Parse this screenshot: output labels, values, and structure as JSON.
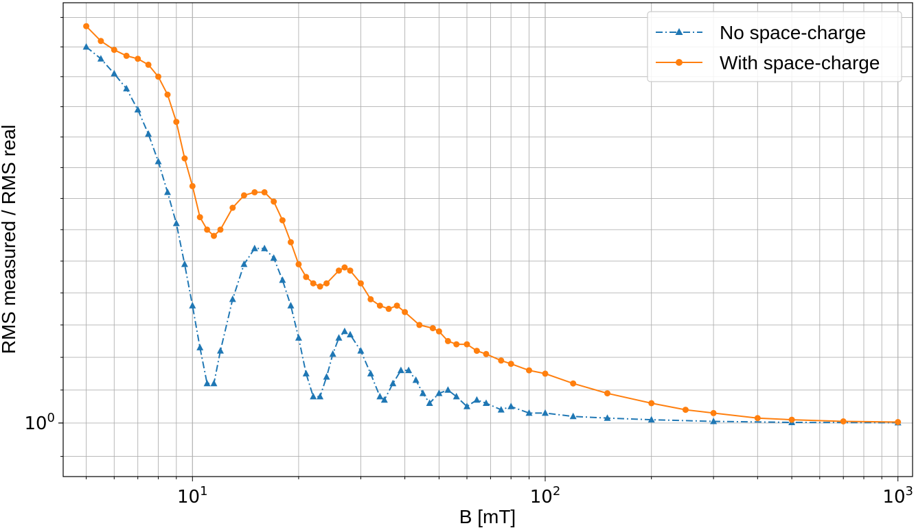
{
  "chart_data": {
    "type": "line",
    "xlabel": "B [mT]",
    "ylabel": "RMS measured / RMS real",
    "xscale": "log",
    "yscale": "log",
    "xlim": [
      4.3,
      1100
    ],
    "ylim": [
      0.984,
      1.135
    ],
    "grid": "major+minor",
    "legend_position": "top-right",
    "x_ticks": [
      {
        "value": 10,
        "label": "10¹",
        "base": "10",
        "exp": "1"
      },
      {
        "value": 100,
        "label": "10²",
        "base": "10",
        "exp": "2"
      },
      {
        "value": 1000,
        "label": "10³",
        "base": "10",
        "exp": "3"
      }
    ],
    "y_ticks": [
      {
        "value": 1,
        "label": "10⁰",
        "base": "10",
        "exp": "0"
      }
    ],
    "series": [
      {
        "name": "No space-charge",
        "color": "#1f77b4",
        "linestyle": "dashdot",
        "marker": "triangle",
        "anchors": [
          [
            5.0,
            1.12
          ],
          [
            5.5,
            1.116
          ],
          [
            6.0,
            1.111
          ],
          [
            6.5,
            1.106
          ],
          [
            7.0,
            1.099
          ],
          [
            7.5,
            1.091
          ],
          [
            8.0,
            1.082
          ],
          [
            8.5,
            1.072
          ],
          [
            9.0,
            1.062
          ],
          [
            9.5,
            1.049
          ],
          [
            10.0,
            1.036
          ],
          [
            10.5,
            1.023
          ],
          [
            11.0,
            1.012
          ],
          [
            11.5,
            1.012
          ],
          [
            12.0,
            1.022
          ],
          [
            13.0,
            1.038
          ],
          [
            14.0,
            1.049
          ],
          [
            15.0,
            1.054
          ],
          [
            16.0,
            1.054
          ],
          [
            17.0,
            1.051
          ],
          [
            18.0,
            1.044
          ],
          [
            19.0,
            1.036
          ],
          [
            20.0,
            1.026
          ],
          [
            21.0,
            1.015
          ],
          [
            22.0,
            1.008
          ],
          [
            23.0,
            1.008
          ],
          [
            24.0,
            1.014
          ],
          [
            25.0,
            1.021
          ],
          [
            26.0,
            1.026
          ],
          [
            27.0,
            1.028
          ],
          [
            28.0,
            1.027
          ],
          [
            30.0,
            1.022
          ],
          [
            32.0,
            1.015
          ],
          [
            34.0,
            1.008
          ],
          [
            35.0,
            1.007
          ],
          [
            37.0,
            1.012
          ],
          [
            39.0,
            1.016
          ],
          [
            41.0,
            1.016
          ],
          [
            43.0,
            1.013
          ],
          [
            45.0,
            1.009
          ],
          [
            47.0,
            1.006
          ],
          [
            50.0,
            1.009
          ],
          [
            53.0,
            1.01
          ],
          [
            56.0,
            1.008
          ],
          [
            60.0,
            1.005
          ],
          [
            64.0,
            1.007
          ],
          [
            68.0,
            1.006
          ],
          [
            75.0,
            1.004
          ],
          [
            80.0,
            1.005
          ],
          [
            90.0,
            1.003
          ],
          [
            100.0,
            1.003
          ],
          [
            120.0,
            1.002
          ],
          [
            150.0,
            1.0015
          ],
          [
            200.0,
            1.001
          ],
          [
            300.0,
            1.0005
          ],
          [
            500.0,
            1.0002
          ],
          [
            1000.0,
            1.0001
          ]
        ]
      },
      {
        "name": "With space-charge",
        "color": "#ff7f0e",
        "linestyle": "solid",
        "marker": "circle",
        "anchors": [
          [
            5.0,
            1.127
          ],
          [
            5.5,
            1.122
          ],
          [
            6.0,
            1.119
          ],
          [
            6.5,
            1.117
          ],
          [
            7.0,
            1.116
          ],
          [
            7.5,
            1.114
          ],
          [
            8.0,
            1.11
          ],
          [
            8.5,
            1.104
          ],
          [
            9.0,
            1.095
          ],
          [
            9.5,
            1.083
          ],
          [
            10.0,
            1.074
          ],
          [
            10.5,
            1.064
          ],
          [
            11.0,
            1.06
          ],
          [
            11.5,
            1.058
          ],
          [
            12.0,
            1.06
          ],
          [
            13.0,
            1.067
          ],
          [
            14.0,
            1.071
          ],
          [
            15.0,
            1.072
          ],
          [
            16.0,
            1.072
          ],
          [
            17.0,
            1.069
          ],
          [
            18.0,
            1.063
          ],
          [
            19.0,
            1.056
          ],
          [
            20.0,
            1.049
          ],
          [
            21.0,
            1.045
          ],
          [
            22.0,
            1.043
          ],
          [
            23.0,
            1.042
          ],
          [
            24.0,
            1.043
          ],
          [
            26.0,
            1.047
          ],
          [
            27.0,
            1.048
          ],
          [
            28.0,
            1.047
          ],
          [
            30.0,
            1.043
          ],
          [
            32.0,
            1.038
          ],
          [
            34.0,
            1.036
          ],
          [
            36.0,
            1.035
          ],
          [
            38.0,
            1.036
          ],
          [
            40.0,
            1.034
          ],
          [
            44.0,
            1.03
          ],
          [
            48.0,
            1.029
          ],
          [
            50.0,
            1.028
          ],
          [
            53.0,
            1.025
          ],
          [
            56.0,
            1.024
          ],
          [
            60.0,
            1.024
          ],
          [
            64.0,
            1.022
          ],
          [
            68.0,
            1.021
          ],
          [
            75.0,
            1.019
          ],
          [
            80.0,
            1.018
          ],
          [
            90.0,
            1.016
          ],
          [
            100.0,
            1.015
          ],
          [
            120.0,
            1.012
          ],
          [
            150.0,
            1.009
          ],
          [
            200.0,
            1.006
          ],
          [
            250.0,
            1.004
          ],
          [
            300.0,
            1.003
          ],
          [
            400.0,
            1.0015
          ],
          [
            500.0,
            1.001
          ],
          [
            700.0,
            1.0005
          ],
          [
            1000.0,
            1.0003
          ]
        ]
      }
    ]
  }
}
